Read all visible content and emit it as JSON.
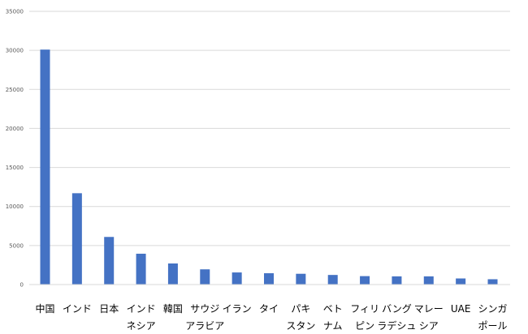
{
  "chart_data": {
    "type": "bar",
    "title": "",
    "xlabel": "",
    "ylabel": "",
    "ylim": [
      0,
      35000
    ],
    "yticks": [
      0,
      5000,
      10000,
      15000,
      20000,
      25000,
      30000,
      35000
    ],
    "grid": true,
    "legend": "none",
    "bar_color": "#4472C4",
    "categories": [
      [
        "中国"
      ],
      [
        "インド"
      ],
      [
        "日本"
      ],
      [
        "インド",
        "ネシア"
      ],
      [
        "韓国"
      ],
      [
        "サウジ",
        "アラビア"
      ],
      [
        "イラン"
      ],
      [
        "タイ"
      ],
      [
        "パキ",
        "スタン"
      ],
      [
        "ベト",
        "ナム"
      ],
      [
        "フィリ",
        "ピン"
      ],
      [
        "バング",
        "ラデシュ"
      ],
      [
        "マレー",
        "シア"
      ],
      [
        "UAE"
      ],
      [
        "シンガ",
        "ポール"
      ]
    ],
    "values": [
      30100,
      11700,
      6100,
      3950,
      2700,
      1950,
      1550,
      1450,
      1380,
      1230,
      1080,
      1050,
      1050,
      780,
      680
    ]
  }
}
